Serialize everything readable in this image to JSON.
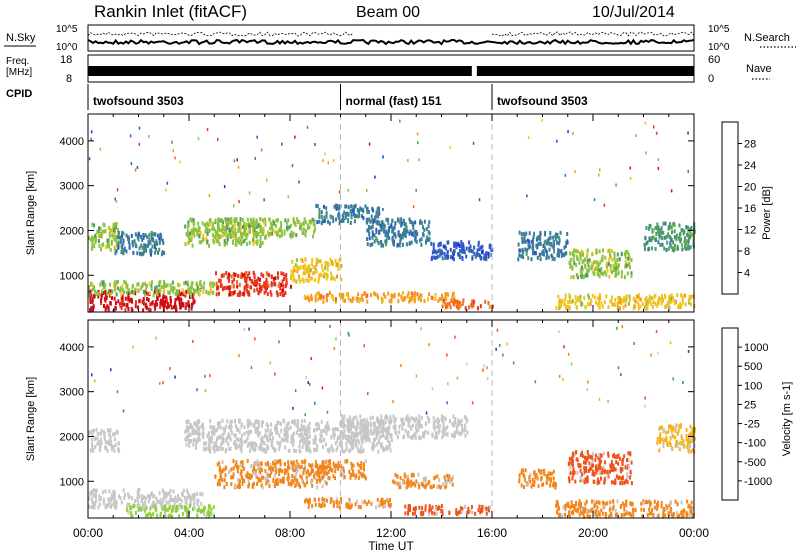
{
  "header": {
    "station": "Rankin Inlet (fitACF)",
    "beam": "Beam 00",
    "date": "10/Jul/2014"
  },
  "noise_panel": {
    "left_label": "N.Sky",
    "right_label": "N.Search",
    "left_ticks": [
      "10^5",
      "10^0"
    ],
    "right_ticks": [
      "10^5",
      "10^0"
    ]
  },
  "freq_panel": {
    "left_label_line1": "Freq.",
    "left_label_line2": "[MHz]",
    "right_label": "Nave",
    "left_ticks": [
      "18",
      "8"
    ],
    "right_ticks": [
      "60",
      "0"
    ]
  },
  "cpid_panel": {
    "label": "CPID",
    "segments": [
      {
        "name": "twofsound 3503",
        "start_h": 0,
        "end_h": 10
      },
      {
        "name": "normal (fast) 151",
        "start_h": 10,
        "end_h": 16
      },
      {
        "name": "twofsound 3503",
        "start_h": 16,
        "end_h": 24
      }
    ]
  },
  "x_axis": {
    "label": "Time UT",
    "ticks": [
      "00:00",
      "04:00",
      "08:00",
      "12:00",
      "16:00",
      "20:00",
      "00:00"
    ]
  },
  "chart_data": [
    {
      "type": "heatmap",
      "ylabel": "Slant Range [km]",
      "ylim": [
        180,
        4600
      ],
      "yticks": [
        "1000",
        "2000",
        "3000",
        "4000"
      ],
      "xlim": [
        0,
        24
      ],
      "colorbar": {
        "label": "Power [dB]",
        "ticks": [
          "4",
          "8",
          "12",
          "16",
          "20",
          "24",
          "28"
        ],
        "range": [
          0,
          30
        ],
        "colors": [
          "#1f2fe0",
          "#2f57c4",
          "#3a7d9a",
          "#4b9a6a",
          "#8cc23e",
          "#f2c21b",
          "#f49a1c",
          "#f26b1d",
          "#e8331c",
          "#cc0c12"
        ]
      },
      "regions": [
        {
          "h0": 0.0,
          "h1": 4.2,
          "r0": 250,
          "r1": 700,
          "value": 27
        },
        {
          "h0": 0.0,
          "h1": 5.0,
          "r0": 600,
          "r1": 900,
          "value": 14
        },
        {
          "h0": 0.0,
          "h1": 1.2,
          "r0": 1600,
          "r1": 2200,
          "value": 14
        },
        {
          "h0": 1.0,
          "h1": 3.0,
          "r0": 1500,
          "r1": 2000,
          "value": 8
        },
        {
          "h0": 3.8,
          "h1": 7.0,
          "r0": 1700,
          "r1": 2300,
          "value": 14
        },
        {
          "h0": 5.0,
          "h1": 9.0,
          "r0": 1900,
          "r1": 2300,
          "value": 12
        },
        {
          "h0": 5.0,
          "h1": 8.0,
          "r0": 600,
          "r1": 1100,
          "value": 24
        },
        {
          "h0": 8.0,
          "h1": 10.0,
          "r0": 900,
          "r1": 1400,
          "value": 16
        },
        {
          "h0": 9.0,
          "h1": 11.5,
          "r0": 2200,
          "r1": 2600,
          "value": 8
        },
        {
          "h0": 11.0,
          "h1": 13.5,
          "r0": 1700,
          "r1": 2300,
          "value": 6
        },
        {
          "h0": 13.5,
          "h1": 16.0,
          "r0": 1400,
          "r1": 1800,
          "value": 5
        },
        {
          "h0": 8.5,
          "h1": 14.5,
          "r0": 450,
          "r1": 650,
          "value": 20
        },
        {
          "h0": 14.0,
          "h1": 16.0,
          "r0": 300,
          "r1": 500,
          "value": 22
        },
        {
          "h0": 17.0,
          "h1": 19.0,
          "r0": 1400,
          "r1": 2000,
          "value": 7
        },
        {
          "h0": 19.0,
          "h1": 21.5,
          "r0": 1000,
          "r1": 1600,
          "value": 14
        },
        {
          "h0": 18.5,
          "h1": 24.0,
          "r0": 300,
          "r1": 600,
          "value": 16
        },
        {
          "h0": 22.0,
          "h1": 24.0,
          "r0": 1600,
          "r1": 2200,
          "value": 10
        }
      ]
    },
    {
      "type": "heatmap",
      "ylabel": "Slant Range [km]",
      "ylim": [
        180,
        4600
      ],
      "yticks": [
        "1000",
        "2000",
        "3000",
        "4000"
      ],
      "xlim": [
        0,
        24
      ],
      "colorbar": {
        "label": "Velocity [m s-1]",
        "ticks": [
          "1000",
          "500",
          "100",
          "25",
          "-25",
          "-100",
          "-500",
          "-1000"
        ],
        "colors": [
          "#1a3ab8",
          "#2f6fd0",
          "#3d9a62",
          "#8fd03a",
          "#c7c7c7",
          "#f4b21c",
          "#f3861a",
          "#f0521a",
          "#e2231a"
        ]
      },
      "regions": [
        {
          "h0": 0.0,
          "h1": 4.5,
          "r0": 450,
          "r1": 850,
          "value": "25"
        },
        {
          "h0": 0.0,
          "h1": 1.2,
          "r0": 1700,
          "r1": 2200,
          "value": "25"
        },
        {
          "h0": 1.5,
          "h1": 5.0,
          "r0": 250,
          "r1": 500,
          "value": "100"
        },
        {
          "h0": 3.8,
          "h1": 12.0,
          "r0": 1700,
          "r1": 2400,
          "value": "25"
        },
        {
          "h0": 10.0,
          "h1": 15.0,
          "r0": 2000,
          "r1": 2500,
          "value": "25"
        },
        {
          "h0": 5.0,
          "h1": 9.5,
          "r0": 900,
          "r1": 1500,
          "value": "-100"
        },
        {
          "h0": 9.0,
          "h1": 11.0,
          "r0": 1100,
          "r1": 1500,
          "value": "-100"
        },
        {
          "h0": 12.0,
          "h1": 14.5,
          "r0": 900,
          "r1": 1200,
          "value": "-100"
        },
        {
          "h0": 8.5,
          "h1": 12.0,
          "r0": 450,
          "r1": 650,
          "value": "-100"
        },
        {
          "h0": 12.5,
          "h1": 16.0,
          "r0": 300,
          "r1": 500,
          "value": "-500"
        },
        {
          "h0": 19.0,
          "h1": 21.5,
          "r0": 1000,
          "r1": 1700,
          "value": "-500"
        },
        {
          "h0": 17.0,
          "h1": 18.5,
          "r0": 900,
          "r1": 1300,
          "value": "-100"
        },
        {
          "h0": 18.5,
          "h1": 24.0,
          "r0": 250,
          "r1": 600,
          "value": "-100"
        },
        {
          "h0": 22.5,
          "h1": 24.0,
          "r0": 1700,
          "r1": 2300,
          "value": "-25"
        }
      ]
    }
  ]
}
